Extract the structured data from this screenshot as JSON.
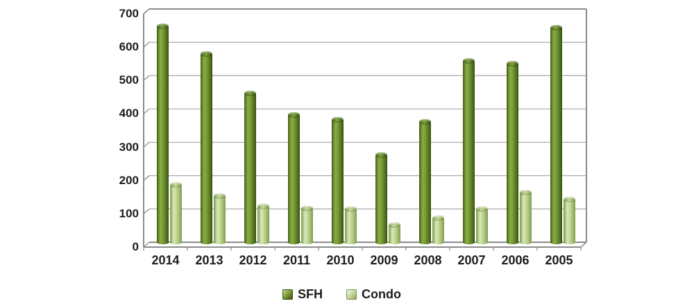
{
  "chart_data": {
    "type": "bar",
    "title": "",
    "xlabel": "",
    "ylabel": "",
    "categories": [
      "2014",
      "2013",
      "2012",
      "2011",
      "2010",
      "2009",
      "2008",
      "2007",
      "2006",
      "2005"
    ],
    "series": [
      {
        "name": "SFH",
        "color": "#6d9232",
        "values": [
          655,
          572,
          452,
          388,
          373,
          268,
          368,
          551,
          543,
          650
        ]
      },
      {
        "name": "Condo",
        "color": "#b6cf8e",
        "values": [
          178,
          146,
          114,
          109,
          106,
          58,
          78,
          106,
          155,
          135
        ]
      }
    ],
    "ylim": [
      0,
      700
    ],
    "yticks": [
      700,
      600,
      500,
      400,
      300,
      200,
      100,
      0
    ],
    "grid": true,
    "legend_position": "bottom",
    "bar_style": "3d-cylinder"
  },
  "colors": {
    "sfh": "#6d9232",
    "condo": "#b6cf8e",
    "gridline": "#a8a8a8",
    "frame": "#8a8a8a",
    "text": "#1c1c1c",
    "background": "#ffffff"
  }
}
